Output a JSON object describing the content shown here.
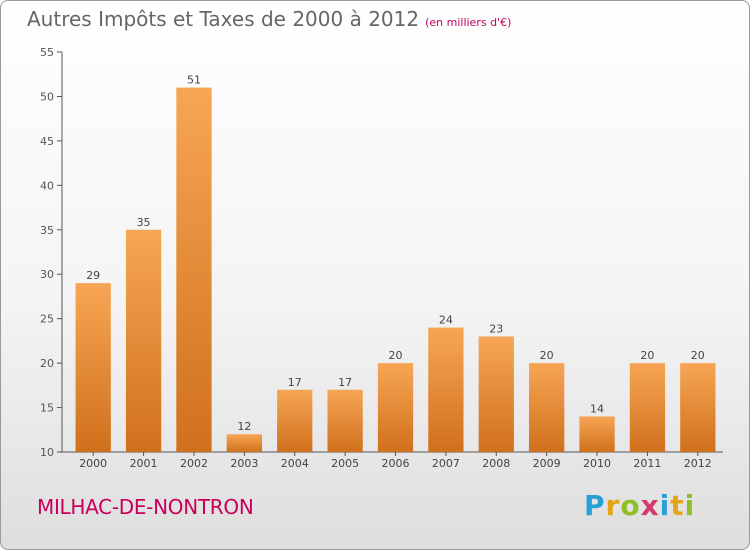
{
  "header": {
    "title": "Autres Impôts et Taxes de 2000 à 2012",
    "subtitle": "(en milliers d'€)"
  },
  "commune": "MILHAC-DE-NONTRON",
  "logo": {
    "text": "Proxiti",
    "letters": [
      "P",
      "r",
      "o",
      "x",
      "i",
      "t",
      "i"
    ]
  },
  "colors": {
    "bar_top": "#f7a655",
    "bar_bottom": "#d0701c",
    "title": "#666666",
    "commune": "#c8005a"
  },
  "chart_data": {
    "type": "bar",
    "title": "Autres Impôts et Taxes de 2000 à 2012",
    "subtitle": "(en milliers d'€)",
    "categories": [
      "2000",
      "2001",
      "2002",
      "2003",
      "2004",
      "2005",
      "2006",
      "2007",
      "2008",
      "2009",
      "2010",
      "2011",
      "2012"
    ],
    "values": [
      29,
      35,
      51,
      12,
      17,
      17,
      20,
      24,
      23,
      20,
      14,
      20,
      20
    ],
    "ylim": [
      10,
      55
    ],
    "yticks": [
      10,
      15,
      20,
      25,
      30,
      35,
      40,
      45,
      50,
      55
    ],
    "grid": false,
    "data_labels": true
  }
}
